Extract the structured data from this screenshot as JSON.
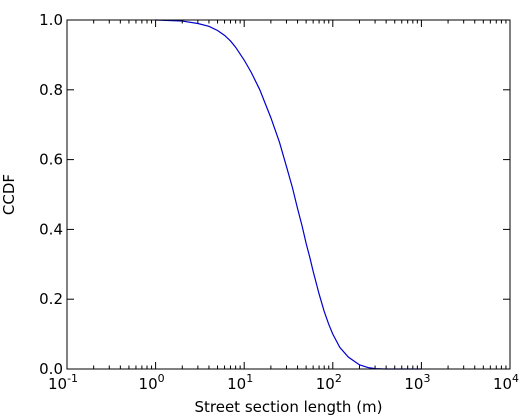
{
  "chart_data": {
    "type": "line",
    "title": "",
    "xlabel": "Street section length (m)",
    "ylabel": "CCDF",
    "xscale": "log",
    "xlim": [
      0.1,
      10000
    ],
    "ylim": [
      0.0,
      1.0
    ],
    "grid": false,
    "x_ticks": [
      {
        "value": 0.1,
        "base": "10",
        "exp": "-1"
      },
      {
        "value": 1,
        "base": "10",
        "exp": "0"
      },
      {
        "value": 10,
        "base": "10",
        "exp": "1"
      },
      {
        "value": 100,
        "base": "10",
        "exp": "2"
      },
      {
        "value": 1000,
        "base": "10",
        "exp": "3"
      },
      {
        "value": 10000,
        "base": "10",
        "exp": "4"
      }
    ],
    "y_ticks": [
      {
        "value": 0.0,
        "label": "0.0"
      },
      {
        "value": 0.2,
        "label": "0.2"
      },
      {
        "value": 0.4,
        "label": "0.4"
      },
      {
        "value": 0.6,
        "label": "0.6"
      },
      {
        "value": 0.8,
        "label": "0.8"
      },
      {
        "value": 1.0,
        "label": "1.0"
      }
    ],
    "series": [
      {
        "color": "#0000cc",
        "x": [
          1,
          2,
          3,
          4,
          5,
          6,
          7,
          8,
          10,
          12,
          15,
          20,
          25,
          30,
          35,
          40,
          45,
          50,
          55,
          60,
          70,
          80,
          90,
          100,
          120,
          150,
          200,
          250,
          300,
          400,
          500,
          1000
        ],
        "y": [
          1.0,
          0.997,
          0.99,
          0.982,
          0.97,
          0.956,
          0.94,
          0.922,
          0.885,
          0.85,
          0.8,
          0.72,
          0.65,
          0.58,
          0.52,
          0.46,
          0.41,
          0.36,
          0.32,
          0.28,
          0.215,
          0.165,
          0.128,
          0.1,
          0.062,
          0.034,
          0.012,
          0.004,
          0.001,
          0.0,
          0.0,
          0.0
        ]
      }
    ]
  }
}
